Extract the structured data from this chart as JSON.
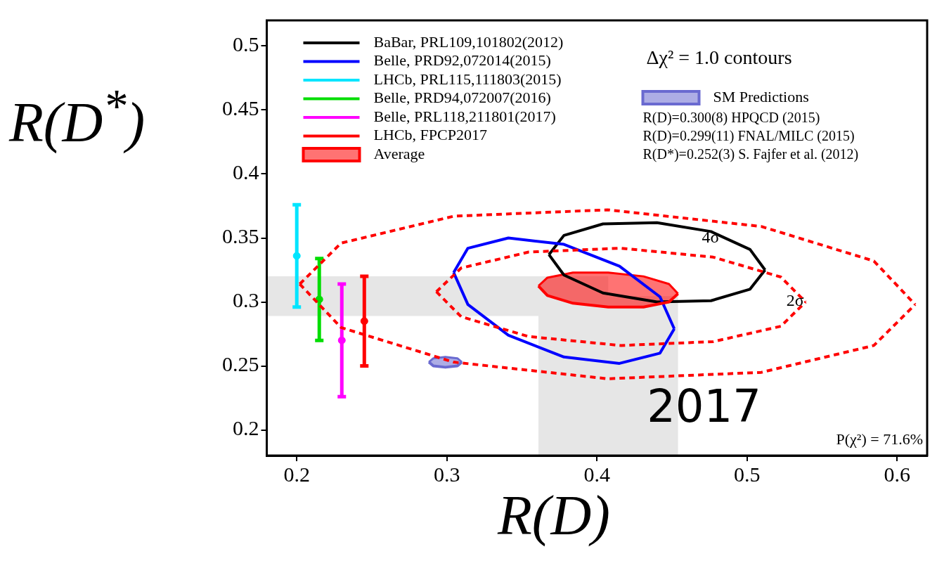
{
  "chart_data": {
    "type": "line",
    "xlabel": "R(D)",
    "ylabel": "R(D$^{*}$)",
    "xlim": [
      0.18,
      0.62
    ],
    "ylim": [
      0.18,
      0.52
    ],
    "xticks": [
      0.2,
      0.3,
      0.4,
      0.5,
      0.6
    ],
    "yticks": [
      0.2,
      0.25,
      0.3,
      0.35,
      0.4,
      0.45,
      0.5
    ],
    "grid": false,
    "legend": "top left",
    "series": [
      {
        "name": "BaBar, PRL109,101802(2012)",
        "color": "#000000",
        "x": [
          0.368,
          0.378,
          0.404,
          0.44,
          0.476,
          0.502,
          0.512
        ],
        "values": [
          0.337,
          0.352,
          0.361,
          0.362,
          0.355,
          0.341,
          0.325
        ]
      },
      {
        "color": "#000000",
        "x": [
          0.368,
          0.378,
          0.404,
          0.44,
          0.476,
          0.502,
          0.512
        ],
        "values": [
          0.337,
          0.321,
          0.307,
          0.3,
          0.301,
          0.31,
          0.325
        ]
      },
      {
        "name": "Belle, PRD92,072014(2015)",
        "color": "#0000ff",
        "x": [
          0.3045,
          0.314,
          0.341,
          0.378,
          0.415,
          0.442,
          0.4515
        ],
        "values": [
          0.323,
          0.342,
          0.35,
          0.345,
          0.328,
          0.304,
          0.279
        ]
      },
      {
        "color": "#0000ff",
        "x": [
          0.3045,
          0.314,
          0.341,
          0.378,
          0.415,
          0.442,
          0.4515
        ],
        "values": [
          0.323,
          0.298,
          0.274,
          0.257,
          0.252,
          0.26,
          0.279
        ]
      },
      {
        "name": "LHCb, PRL115,111803(2015)",
        "type": "scatter",
        "marker": "circle",
        "color": "#00e5ff",
        "x": [
          0.2
        ],
        "values": [
          0.336
        ],
        "errors": [
          0.04
        ]
      },
      {
        "name": "Belle, PRD94,072007(2016)",
        "type": "scatter",
        "marker": "circle",
        "color": "#00dd00",
        "x": [
          0.215
        ],
        "values": [
          0.302
        ],
        "errors": [
          0.032
        ]
      },
      {
        "name": "Belle, PRL118,211801(2017)",
        "type": "scatter",
        "marker": "circle",
        "color": "#ff00ff",
        "x": [
          0.23
        ],
        "values": [
          0.27
        ],
        "errors": [
          0.044
        ]
      },
      {
        "name": "LHCb, FPCP2017",
        "type": "scatter",
        "marker": "circle",
        "color": "#ff0000",
        "x": [
          0.245
        ],
        "values": [
          0.285
        ],
        "errors": [
          0.035
        ]
      },
      {
        "name": "Average",
        "type": "area",
        "color": "#ff0000",
        "x": [
          0.361,
          0.367,
          0.384,
          0.4075,
          0.431,
          0.448,
          0.454
        ],
        "values": [
          0.3125,
          0.319,
          0.323,
          0.323,
          0.32,
          0.314,
          0.3065
        ]
      },
      {
        "color": "#ff0000",
        "x": [
          0.361,
          0.367,
          0.384,
          0.4075,
          0.431,
          0.448,
          0.454
        ],
        "values": [
          0.3125,
          0.305,
          0.299,
          0.296,
          0.296,
          0.3,
          0.3065
        ]
      },
      {
        "name": "SM Predictions",
        "type": "area",
        "color": "#6a6ad0",
        "x": [
          0.288,
          0.291,
          0.299,
          0.307,
          0.31
        ],
        "values": [
          0.253,
          0.256,
          0.257,
          0.256,
          0.253
        ]
      },
      {
        "color": "#6a6ad0",
        "x": [
          0.288,
          0.291,
          0.299,
          0.307,
          0.31
        ],
        "values": [
          0.253,
          0.25,
          0.249,
          0.25,
          0.253
        ]
      },
      {
        "color": "#ff0000",
        "line_style": "dashed",
        "x": [
          0.293,
          0.3095,
          0.3545,
          0.416,
          0.4775,
          0.5225,
          0.539
        ],
        "values": [
          0.308,
          0.3265,
          0.339,
          0.342,
          0.335,
          0.3195,
          0.3
        ]
      },
      {
        "color": "#ff0000",
        "line_style": "dashed",
        "x": [
          0.293,
          0.3095,
          0.3545,
          0.416,
          0.4775,
          0.5225,
          0.539
        ],
        "values": [
          0.308,
          0.2885,
          0.273,
          0.266,
          0.269,
          0.281,
          0.3
        ]
      },
      {
        "color": "#ff0000",
        "line_style": "dashed",
        "x": [
          0.202,
          0.2295,
          0.3045,
          0.407,
          0.5095,
          0.5845,
          0.612
        ],
        "values": [
          0.314,
          0.346,
          0.367,
          0.372,
          0.359,
          0.332,
          0.298
        ]
      },
      {
        "color": "#ff0000",
        "line_style": "dashed",
        "x": [
          0.202,
          0.2295,
          0.3045,
          0.407,
          0.5095,
          0.5845,
          0.612
        ],
        "values": [
          0.314,
          0.28,
          0.253,
          0.24,
          0.245,
          0.266,
          0.298
        ]
      }
    ],
    "bands": [
      {
        "axis": "x",
        "from": 0.361,
        "to": 0.454,
        "color": "#e6e6e6"
      },
      {
        "axis": "y",
        "from": 0.289,
        "to": 0.32,
        "color": "#e6e6e6"
      }
    ],
    "annotations": [
      "Δχ² = 1.0 contours",
      "R(D)=0.300(8) HPQCD (2015)",
      "R(D)=0.299(11) FNAL/MILC (2015)",
      "R(D*)=0.252(3) S. Fajfer et al. (2012)",
      "P(χ²) = 71.6%",
      "2017",
      "4σ",
      "2σ"
    ]
  }
}
